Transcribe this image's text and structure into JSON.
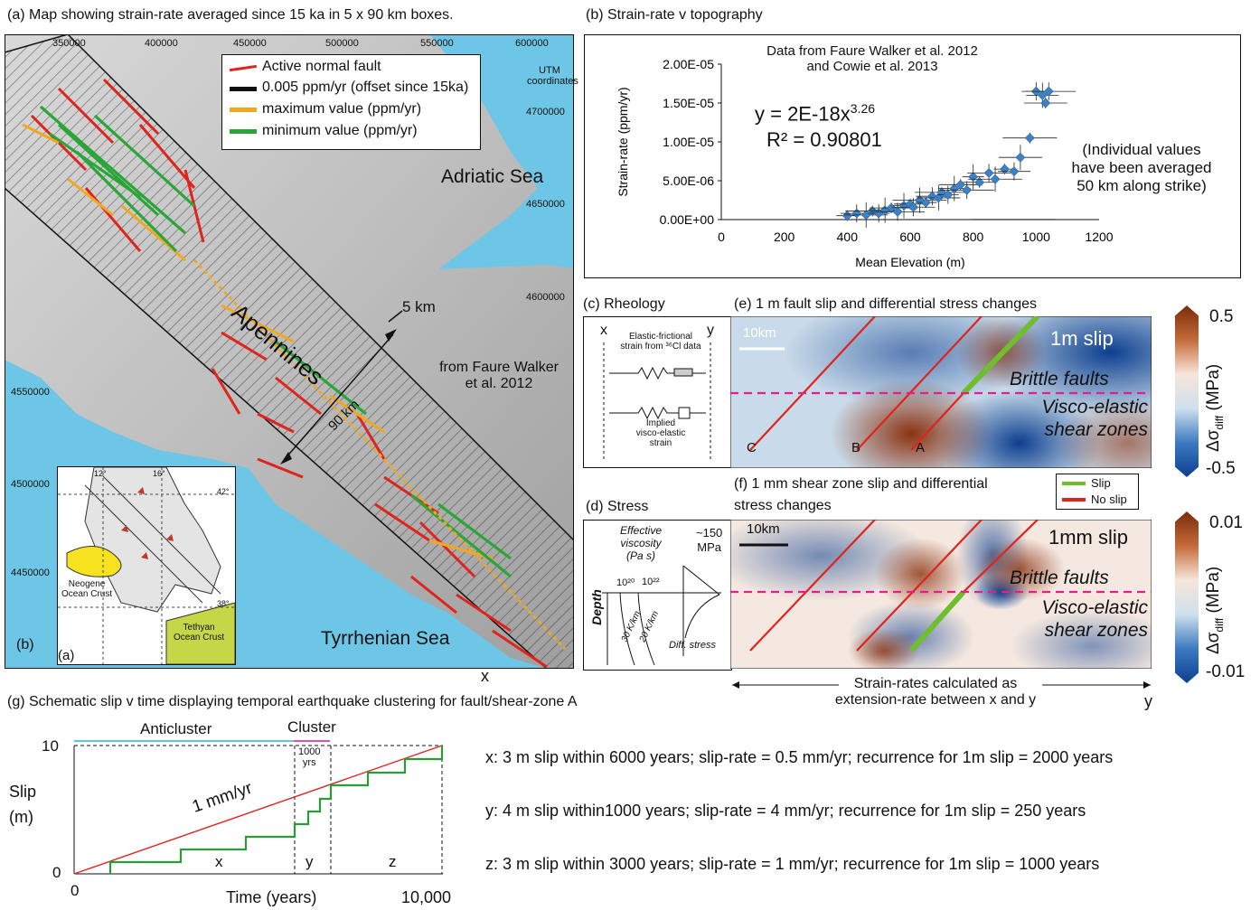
{
  "panel_a": {
    "caption": "(a) Map showing strain-rate averaged since 15 ka in 5 x 90 km boxes.",
    "utm_x": [
      "350000",
      "400000",
      "450000",
      "500000",
      "550000",
      "600000"
    ],
    "utm_y": [
      "4700000",
      "4650000",
      "4600000",
      "4550000",
      "4500000",
      "4450000"
    ],
    "utm_label": [
      "UTM",
      "coordinates"
    ],
    "legend": [
      "Active normal fault",
      "0.005 ppm/yr (offset since 15ka)",
      "maximum value (ppm/yr)",
      "minimum value (ppm/yr)"
    ],
    "colors": {
      "fault": "#e0231c",
      "black": "#111111",
      "max": "#f2a81d",
      "min": "#2aa639",
      "sea": "#6ec6e6"
    },
    "adriatic": "Adriatic Sea",
    "tyrrhenian": "Tyrrhenian Sea",
    "apennines": "Apennines",
    "box_width": "5 km",
    "box_length": "90 km",
    "source": [
      "from Faure Walker",
      "et al. 2012"
    ],
    "x_marker": "x",
    "corner_b": "(b)",
    "inset": {
      "label": "(a)",
      "neogene": [
        "Neogene",
        "Ocean Crust"
      ],
      "tethyan": [
        "Tethyan",
        "Ocean Crust"
      ],
      "lon": [
        "12°",
        "16°"
      ],
      "lat": [
        "42°",
        "38°"
      ]
    }
  },
  "panel_b": {
    "caption": "(b) Strain-rate v topography",
    "source": [
      "Data from Faure Walker et al. 2012",
      "and Cowie et al. 2013"
    ],
    "equation": "y = 2E-18x",
    "exponent": "3.26",
    "r2": "R² = 0.90801",
    "note": [
      "(Individual values",
      "have been averaged",
      "50 km along strike)"
    ]
  },
  "chart_data": {
    "type": "scatter",
    "xlabel": "Mean Elevation (m)",
    "ylabel": "Strain-rate (ppm/yr)",
    "xlim": [
      0,
      1200
    ],
    "ylim": [
      0,
      2e-05
    ],
    "xticks": [
      "0",
      "200",
      "400",
      "600",
      "800",
      "1000",
      "1200"
    ],
    "yticks": [
      "0.00E+00",
      "5.00E-06",
      "1.00E-05",
      "1.50E-05",
      "2.00E-05"
    ],
    "x": [
      400,
      430,
      460,
      480,
      500,
      520,
      540,
      560,
      580,
      600,
      610,
      630,
      650,
      670,
      690,
      700,
      720,
      740,
      760,
      780,
      800,
      820,
      850,
      870,
      900,
      930,
      950,
      980,
      1000,
      1020,
      1030,
      1040
    ],
    "y": [
      5e-07,
      8e-07,
      6e-07,
      1.1e-06,
      8e-07,
      1.2e-06,
      1.5e-06,
      1e-06,
      1.8e-06,
      2e-06,
      1.6e-06,
      2.5e-06,
      2.2e-06,
      3e-06,
      2.8e-06,
      3.5e-06,
      3.2e-06,
      4e-06,
      4.5e-06,
      3.8e-06,
      5.5e-06,
      4.8e-06,
      6e-06,
      5.2e-06,
      6.5e-06,
      6.2e-06,
      8e-06,
      1.05e-05,
      1.65e-05,
      1.6e-05,
      1.5e-05,
      1.65e-05
    ],
    "trendline": {
      "a": 2e-18,
      "b": 3.26
    }
  },
  "panel_c": {
    "caption": "(c) Rheology",
    "x": "x",
    "y": "y",
    "elastic": [
      "Elastic-frictional",
      "strain from ³⁶Cl data"
    ],
    "implied": [
      "Implied",
      "visco-elastic",
      "strain"
    ]
  },
  "panel_d": {
    "caption": "(d) Stress",
    "viscosity": [
      "Effective",
      "viscosity",
      "(Pa s)"
    ],
    "v1": "10²⁰",
    "v2": "10²²",
    "depth": "Depth",
    "g30": "30 K/km",
    "g20": "20 K/km",
    "stress_val": [
      "~150",
      "MPa"
    ],
    "diff": "Diff. stress"
  },
  "panel_e": {
    "caption": "(e) 1 m fault slip and differential stress changes",
    "scale": "10km",
    "slip": "1m slip",
    "brittle": "Brittle faults",
    "visco": [
      "Visco-elastic",
      "shear zones"
    ],
    "faults": [
      "C",
      "B",
      "A"
    ],
    "cbar_max": "0.5",
    "cbar_min": "-0.5",
    "cbar_label": "Δσ",
    "cbar_sub": "diff",
    "cbar_unit": "(MPa)"
  },
  "panel_f": {
    "caption": [
      "(f) 1 mm shear zone slip and differential",
      "stress changes"
    ],
    "legend": [
      "Slip",
      "No slip"
    ],
    "scale": "10km",
    "slip": "1mm slip",
    "brittle": "Brittle faults",
    "visco": [
      "Visco-elastic",
      "shear zones"
    ],
    "cbar_max": "0.01",
    "cbar_min": "-0.01",
    "cbar_label": "Δσ",
    "cbar_sub": "diff",
    "cbar_unit": "(MPa)",
    "strain_note": [
      "Strain-rates calculated as",
      "extension-rate between x and y"
    ],
    "y_marker": "y"
  },
  "panel_g": {
    "caption": "(g) Schematic slip v time displaying temporal earthquake clustering for fault/shear-zone A",
    "anticluster": "Anticluster",
    "cluster": "Cluster",
    "years": [
      "1000",
      "yrs"
    ],
    "ylabel": [
      "Slip",
      "(m)"
    ],
    "xlabel": "Time (years)",
    "rate": "1 mm/yr",
    "y10": "10",
    "y0": "0",
    "x0": "0",
    "x10000": "10,000",
    "segs": [
      "x",
      "y",
      "z"
    ],
    "statements": [
      "x: 3 m slip within  6000 years; slip-rate = 0.5 mm/yr; recurrence for 1m slip = 2000 years",
      "y: 4 m slip within1000 years; slip-rate = 4 mm/yr; recurrence for 1m slip = 250 years",
      "z: 3 m slip within 3000 years; slip-rate = 1 mm/yr;  recurrence for 1m slip = 1000 years"
    ]
  }
}
